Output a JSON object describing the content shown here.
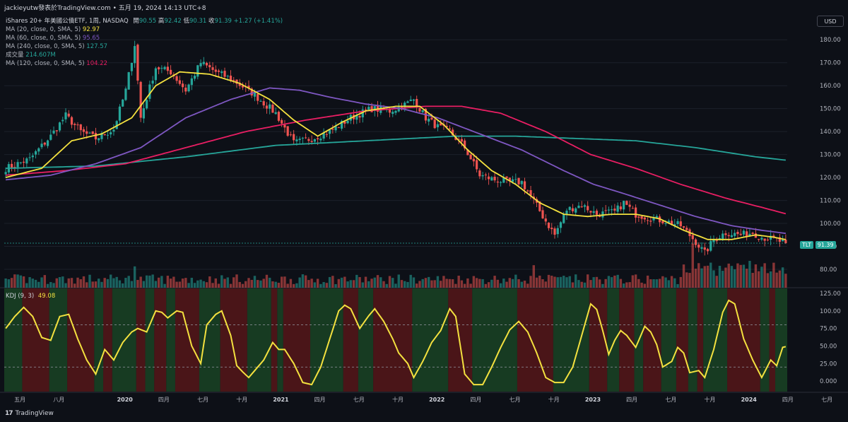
{
  "header": {
    "author_line": "jackieyutw發表於TradingView.com • 五月 19, 2024 14:13 UTC+8",
    "usd_label": "USD"
  },
  "legend": {
    "symbol_title": "iShares 20+ 年美國公債ETF, 1周, NASDAQ",
    "ohlc": {
      "open_label": "開",
      "open": "90.55",
      "high_label": "高",
      "high": "92.42",
      "low_label": "低",
      "low": "90.31",
      "close_label": "收",
      "close": "91.39",
      "change": "+1.27 (+1.41%)"
    },
    "indicators": [
      {
        "label": "MA (20, close, 0, SMA, 5)",
        "value": "92.97",
        "color": "#f4e13f"
      },
      {
        "label": "MA (60, close, 0, SMA, 5)",
        "value": "95.65",
        "color": "#7e57c2"
      },
      {
        "label": "MA (240, close, 0, SMA, 5)",
        "value": "127.57",
        "color": "#26a69a"
      },
      {
        "label": "成交量",
        "value": "214.607M",
        "color": "#26a69a"
      },
      {
        "label": "MA (120, close, 0, SMA, 5)",
        "value": "104.22",
        "color": "#e91e63"
      }
    ],
    "kdj_label": "KDJ (9, 3)",
    "kdj_value": "49.08"
  },
  "ticker_badge": {
    "symbol": "TLT",
    "price": "91.39",
    "color": "#26a69a"
  },
  "brand": {
    "logo": "17",
    "name": "TradingView"
  },
  "colors": {
    "up": "#26a69a",
    "down": "#ef5350",
    "ma20": "#f4e13f",
    "ma60": "#7e57c2",
    "ma120": "#e91e63",
    "ma240": "#26a69a",
    "kdj": "#f4e13f",
    "kdj_bg_up": "#173b22",
    "kdj_bg_down": "#4a1518"
  },
  "chart_data": [
    {
      "type": "candlestick",
      "title": "iShares 20+ 年美國公債ETF, 1周, NASDAQ",
      "ylim": [
        72,
        185
      ],
      "y_ticks": [
        80,
        90,
        100,
        110,
        120,
        130,
        140,
        150,
        160,
        170,
        180
      ],
      "y_tick_labels": [
        "80.00",
        "90.00",
        "100.00",
        "110.00",
        "120.00",
        "130.00",
        "140.00",
        "150.00",
        "160.00",
        "170.00",
        "180.00"
      ],
      "x_tick_labels": [
        "五月",
        "八月",
        "2020",
        "四月",
        "七月",
        "十月",
        "2021",
        "四月",
        "七月",
        "十月",
        "2022",
        "四月",
        "七月",
        "十月",
        "2023",
        "四月",
        "七月",
        "十月",
        "2024",
        "四月",
        "七月"
      ],
      "x_tick_week_index": [
        0,
        13,
        35,
        48,
        61,
        74,
        87,
        100,
        113,
        126,
        139,
        152,
        165,
        178,
        191,
        204,
        217,
        230,
        243,
        256,
        269
      ],
      "close_anchors": [
        [
          0,
          124
        ],
        [
          8,
          128
        ],
        [
          15,
          138
        ],
        [
          20,
          147
        ],
        [
          25,
          140
        ],
        [
          30,
          137
        ],
        [
          36,
          141
        ],
        [
          40,
          158
        ],
        [
          43,
          178
        ],
        [
          45,
          146
        ],
        [
          50,
          168
        ],
        [
          55,
          166
        ],
        [
          60,
          158
        ],
        [
          65,
          170
        ],
        [
          70,
          166
        ],
        [
          75,
          163
        ],
        [
          82,
          157
        ],
        [
          90,
          148
        ],
        [
          96,
          135
        ],
        [
          102,
          137
        ],
        [
          108,
          140
        ],
        [
          115,
          146
        ],
        [
          122,
          150
        ],
        [
          128,
          149
        ],
        [
          132,
          151
        ],
        [
          136,
          154
        ],
        [
          140,
          146
        ],
        [
          144,
          142
        ],
        [
          148,
          140
        ],
        [
          153,
          133
        ],
        [
          158,
          121
        ],
        [
          163,
          119
        ],
        [
          168,
          118
        ],
        [
          172,
          118
        ],
        [
          175,
          112
        ],
        [
          180,
          101
        ],
        [
          183,
          95
        ],
        [
          187,
          106
        ],
        [
          192,
          108
        ],
        [
          197,
          104
        ],
        [
          203,
          105
        ],
        [
          206,
          109
        ],
        [
          210,
          104
        ],
        [
          216,
          102
        ],
        [
          220,
          101
        ],
        [
          225,
          99
        ],
        [
          230,
          92
        ],
        [
          233,
          87
        ],
        [
          236,
          93
        ],
        [
          240,
          96
        ],
        [
          245,
          95
        ],
        [
          249,
          96
        ],
        [
          252,
          94
        ],
        [
          256,
          93
        ],
        [
          260,
          91.39
        ]
      ],
      "ma20_anchors": [
        [
          0,
          120
        ],
        [
          12,
          124
        ],
        [
          22,
          136
        ],
        [
          32,
          139
        ],
        [
          42,
          146
        ],
        [
          50,
          160
        ],
        [
          58,
          166
        ],
        [
          68,
          165
        ],
        [
          78,
          161
        ],
        [
          88,
          154
        ],
        [
          96,
          145
        ],
        [
          104,
          138
        ],
        [
          112,
          144
        ],
        [
          120,
          149
        ],
        [
          130,
          151
        ],
        [
          138,
          151
        ],
        [
          146,
          143
        ],
        [
          154,
          132
        ],
        [
          162,
          123
        ],
        [
          170,
          117
        ],
        [
          178,
          109
        ],
        [
          186,
          104
        ],
        [
          194,
          103
        ],
        [
          202,
          104
        ],
        [
          210,
          104
        ],
        [
          218,
          102
        ],
        [
          226,
          97
        ],
        [
          234,
          93
        ],
        [
          242,
          93
        ],
        [
          250,
          95
        ],
        [
          256,
          94
        ],
        [
          260,
          92.97
        ]
      ],
      "ma60_anchors": [
        [
          0,
          119
        ],
        [
          15,
          121
        ],
        [
          30,
          126
        ],
        [
          45,
          133
        ],
        [
          60,
          146
        ],
        [
          75,
          154
        ],
        [
          88,
          159
        ],
        [
          98,
          158
        ],
        [
          108,
          155
        ],
        [
          120,
          152
        ],
        [
          132,
          150
        ],
        [
          144,
          146
        ],
        [
          158,
          139
        ],
        [
          172,
          132
        ],
        [
          186,
          123
        ],
        [
          196,
          117
        ],
        [
          206,
          113
        ],
        [
          218,
          108
        ],
        [
          230,
          103
        ],
        [
          242,
          99
        ],
        [
          252,
          97
        ],
        [
          260,
          95.65
        ]
      ],
      "ma120_anchors": [
        [
          0,
          121
        ],
        [
          20,
          123
        ],
        [
          40,
          126
        ],
        [
          60,
          133
        ],
        [
          80,
          140
        ],
        [
          100,
          145
        ],
        [
          120,
          149
        ],
        [
          140,
          151
        ],
        [
          152,
          151
        ],
        [
          165,
          148
        ],
        [
          180,
          140
        ],
        [
          195,
          130
        ],
        [
          210,
          124
        ],
        [
          225,
          117
        ],
        [
          240,
          111
        ],
        [
          252,
          107
        ],
        [
          260,
          104.22
        ]
      ],
      "ma240_anchors": [
        [
          0,
          124
        ],
        [
          30,
          125
        ],
        [
          60,
          129
        ],
        [
          90,
          134
        ],
        [
          120,
          136
        ],
        [
          150,
          138
        ],
        [
          170,
          138
        ],
        [
          190,
          137
        ],
        [
          210,
          136
        ],
        [
          230,
          133
        ],
        [
          250,
          129
        ],
        [
          260,
          127.57
        ]
      ],
      "last_close": 91.39
    },
    {
      "type": "area",
      "title": "KDJ (9, 3)",
      "ylim": [
        -15,
        132
      ],
      "y_ticks": [
        0,
        25,
        50,
        75,
        100,
        125
      ],
      "y_tick_labels": [
        "0.000",
        "25.00",
        "50.00",
        "75.00",
        "100.00",
        "125.00"
      ],
      "reference_lines": [
        20,
        80
      ],
      "j_anchors": [
        [
          0,
          75
        ],
        [
          3,
          92
        ],
        [
          6,
          105
        ],
        [
          9,
          92
        ],
        [
          12,
          62
        ],
        [
          15,
          58
        ],
        [
          18,
          92
        ],
        [
          21,
          95
        ],
        [
          24,
          60
        ],
        [
          27,
          30
        ],
        [
          30,
          10
        ],
        [
          33,
          45
        ],
        [
          36,
          30
        ],
        [
          39,
          55
        ],
        [
          42,
          70
        ],
        [
          44,
          75
        ],
        [
          47,
          70
        ],
        [
          50,
          100
        ],
        [
          52,
          98
        ],
        [
          54,
          90
        ],
        [
          57,
          100
        ],
        [
          59,
          98
        ],
        [
          62,
          50
        ],
        [
          65,
          25
        ],
        [
          67,
          80
        ],
        [
          70,
          95
        ],
        [
          72,
          100
        ],
        [
          75,
          65
        ],
        [
          77,
          22
        ],
        [
          79,
          13
        ],
        [
          81,
          5
        ],
        [
          84,
          20
        ],
        [
          86,
          30
        ],
        [
          89,
          55
        ],
        [
          91,
          45
        ],
        [
          93,
          45
        ],
        [
          96,
          25
        ],
        [
          99,
          -2
        ],
        [
          102,
          -5
        ],
        [
          105,
          20
        ],
        [
          108,
          60
        ],
        [
          111,
          100
        ],
        [
          113,
          108
        ],
        [
          115,
          103
        ],
        [
          118,
          75
        ],
        [
          121,
          93
        ],
        [
          123,
          103
        ],
        [
          126,
          85
        ],
        [
          129,
          60
        ],
        [
          131,
          40
        ],
        [
          134,
          25
        ],
        [
          136,
          5
        ],
        [
          139,
          28
        ],
        [
          142,
          55
        ],
        [
          145,
          72
        ],
        [
          148,
          103
        ],
        [
          150,
          92
        ],
        [
          153,
          10
        ],
        [
          156,
          -5
        ],
        [
          159,
          -5
        ],
        [
          162,
          20
        ],
        [
          165,
          48
        ],
        [
          168,
          73
        ],
        [
          171,
          85
        ],
        [
          174,
          70
        ],
        [
          177,
          40
        ],
        [
          180,
          5
        ],
        [
          183,
          -2
        ],
        [
          186,
          -2
        ],
        [
          189,
          20
        ],
        [
          192,
          65
        ],
        [
          195,
          110
        ],
        [
          197,
          102
        ],
        [
          199,
          72
        ],
        [
          201,
          38
        ],
        [
          203,
          58
        ],
        [
          205,
          72
        ],
        [
          207,
          65
        ],
        [
          210,
          48
        ],
        [
          213,
          78
        ],
        [
          215,
          70
        ],
        [
          217,
          52
        ],
        [
          219,
          20
        ],
        [
          222,
          28
        ],
        [
          224,
          48
        ],
        [
          226,
          40
        ],
        [
          228,
          12
        ],
        [
          231,
          15
        ],
        [
          233,
          5
        ],
        [
          236,
          45
        ],
        [
          239,
          98
        ],
        [
          241,
          115
        ],
        [
          243,
          110
        ],
        [
          246,
          60
        ],
        [
          249,
          30
        ],
        [
          252,
          5
        ],
        [
          255,
          30
        ],
        [
          257,
          22
        ],
        [
          259,
          48
        ],
        [
          260,
          49.08
        ]
      ],
      "latest_value": 49.08
    }
  ]
}
